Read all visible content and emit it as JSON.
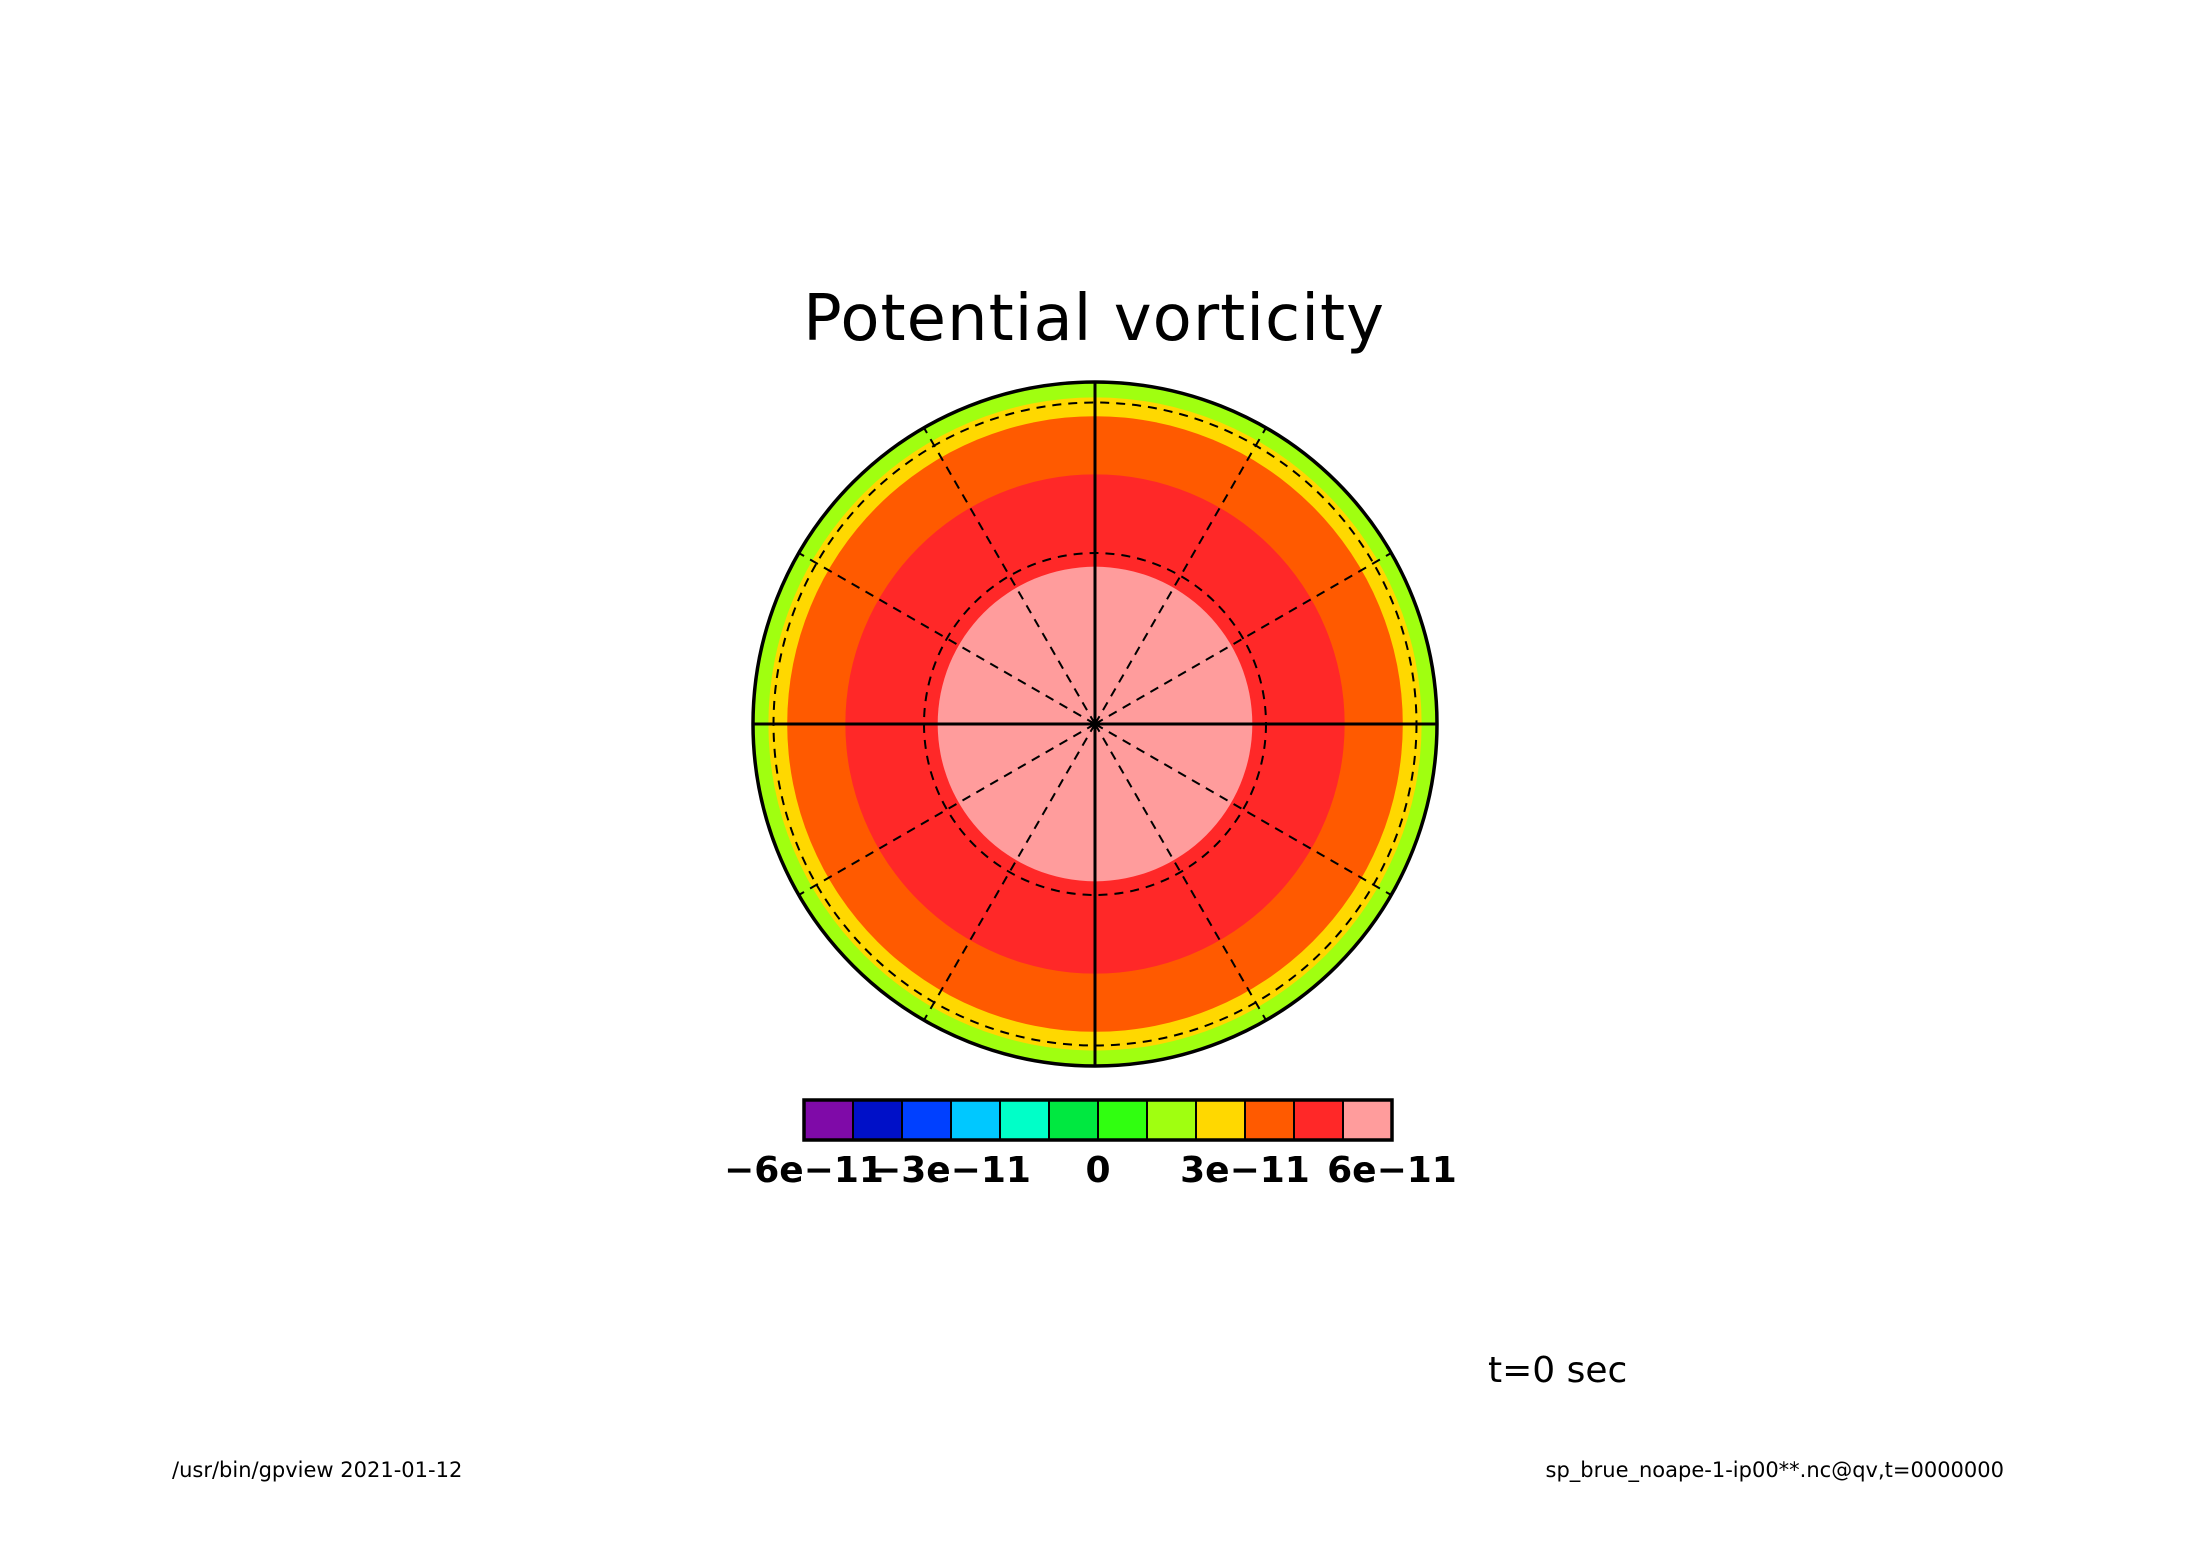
{
  "chart_data": {
    "type": "heatmap",
    "title": "Potential vorticity",
    "projection": "polar",
    "colorbar": {
      "colors": [
        "#7f0aa8",
        "#0010c8",
        "#0040ff",
        "#00c8ff",
        "#00ffc8",
        "#00e840",
        "#30ff10",
        "#a0ff10",
        "#ffd800",
        "#ff5a00",
        "#ff2828",
        "#ff9c9c"
      ],
      "tick_labels": [
        "-6e-11",
        "-3e-11",
        "0",
        "3e-11",
        "6e-11"
      ],
      "tick_values": [
        -6e-11,
        -3e-11,
        0,
        3e-11,
        6e-11
      ],
      "range": [
        -6e-11,
        6e-11
      ]
    },
    "rings": [
      {
        "r_inner": 0.955,
        "r_outer": 1.0,
        "color": "#a0ff10"
      },
      {
        "r_inner": 0.9,
        "r_outer": 0.955,
        "color": "#ffd800"
      },
      {
        "r_inner": 0.73,
        "r_outer": 0.9,
        "color": "#ff5a00"
      },
      {
        "r_inner": 0.46,
        "r_outer": 0.73,
        "color": "#ff2828"
      },
      {
        "r_inner": 0.0,
        "r_outer": 0.46,
        "color": "#ff9c9c"
      }
    ],
    "grid": true
  },
  "labels": {
    "time": "t=0 sec",
    "footer_left": "/usr/bin/gpview  2021-01-12",
    "footer_right": "sp_brue_noape-1-ip00**.nc@qv,t=0000000"
  }
}
